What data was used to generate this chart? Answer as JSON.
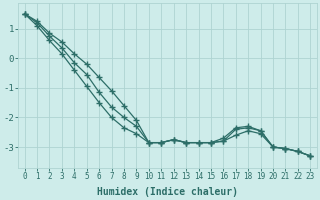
{
  "xlabel": "Humidex (Indice chaleur)",
  "background_color": "#ceecea",
  "grid_color": "#aed4d2",
  "line_color": "#2d6e68",
  "x_values": [
    0,
    1,
    2,
    3,
    4,
    5,
    6,
    7,
    8,
    9,
    10,
    11,
    12,
    13,
    14,
    15,
    16,
    17,
    18,
    19,
    20,
    21,
    22,
    23
  ],
  "line1_y": [
    1.5,
    1.25,
    0.85,
    0.55,
    0.15,
    -0.2,
    -0.65,
    -1.1,
    -1.6,
    -2.1,
    -2.85,
    -2.85,
    -2.75,
    -2.85,
    -2.85,
    -2.85,
    -2.8,
    -2.6,
    -2.45,
    -2.55,
    -3.0,
    -3.05,
    -3.15,
    -3.3
  ],
  "line2_y": [
    1.5,
    1.2,
    0.75,
    0.35,
    -0.15,
    -0.55,
    -1.15,
    -1.65,
    -2.0,
    -2.3,
    -2.85,
    -2.85,
    -2.75,
    -2.85,
    -2.85,
    -2.85,
    -2.8,
    -2.4,
    -2.35,
    -2.45,
    -3.0,
    -3.05,
    -3.15,
    -3.3
  ],
  "line3_y": [
    1.5,
    1.1,
    0.6,
    0.15,
    -0.4,
    -0.95,
    -1.5,
    -2.0,
    -2.35,
    -2.55,
    -2.85,
    -2.85,
    -2.75,
    -2.85,
    -2.85,
    -2.85,
    -2.7,
    -2.35,
    -2.3,
    -2.45,
    -3.0,
    -3.05,
    -3.15,
    -3.3
  ],
  "ylim": [
    -3.7,
    1.85
  ],
  "xlim": [
    -0.5,
    23.5
  ],
  "yticks": [
    1,
    0,
    -1,
    -2,
    -3
  ],
  "marker": "+",
  "markersize": 4,
  "linewidth": 0.9,
  "xlabel_fontsize": 7,
  "ytick_fontsize": 6.5,
  "xtick_fontsize": 5.5
}
